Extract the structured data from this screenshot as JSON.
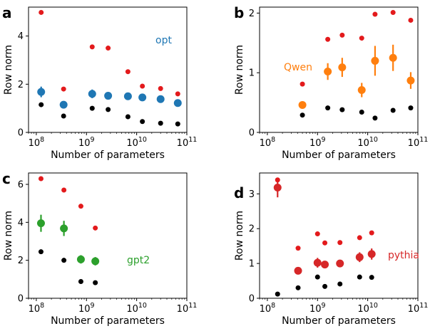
{
  "chart_data": [
    {
      "panel": "a",
      "type": "scatter",
      "label": "opt",
      "xlabel": "Number of parameters",
      "ylabel": "Row norm",
      "x_scale": "log",
      "xlim": [
        70000000,
        100000000000
      ],
      "ylim": [
        0,
        5.2
      ],
      "x_ticks": [
        100000000,
        1000000000,
        10000000000,
        100000000000
      ],
      "x_tick_labels": [
        {
          "base": "10",
          "exp": "8"
        },
        {
          "base": "10",
          "exp": "9"
        },
        {
          "base": "10",
          "exp": "10"
        },
        {
          "base": "10",
          "exp": "11"
        }
      ],
      "y_ticks": [
        0,
        2,
        4
      ],
      "y_tick_labels": [
        "0",
        "2",
        "4"
      ],
      "colors": {
        "main": "#1f77b4",
        "upper": "#e31a1c",
        "lower": "#000000"
      },
      "x": [
        125000000,
        350000000,
        1300000000,
        2700000000,
        6700000000,
        13000000000,
        30000000000,
        66000000000
      ],
      "main": [
        1.68,
        1.15,
        1.6,
        1.52,
        1.5,
        1.45,
        1.38,
        1.22
      ],
      "error": [
        0.22,
        0.12,
        0.18,
        0.15,
        0.12,
        0.12,
        0.1,
        0.12
      ],
      "upper": [
        4.98,
        1.8,
        3.55,
        3.5,
        2.52,
        1.92,
        1.82,
        1.6
      ],
      "lower": [
        1.15,
        0.68,
        1.0,
        0.95,
        0.65,
        0.45,
        0.38,
        0.35
      ]
    },
    {
      "panel": "b",
      "type": "scatter",
      "label": "Qwen",
      "xlabel": "Number of parameters",
      "ylabel": "Row norm",
      "x_scale": "log",
      "xlim": [
        70000000,
        100000000000
      ],
      "ylim": [
        0,
        2.1
      ],
      "x_ticks": [
        100000000,
        1000000000,
        10000000000,
        100000000000
      ],
      "x_tick_labels": [
        {
          "base": "10",
          "exp": "8"
        },
        {
          "base": "10",
          "exp": "9"
        },
        {
          "base": "10",
          "exp": "10"
        },
        {
          "base": "10",
          "exp": "11"
        }
      ],
      "y_ticks": [
        0,
        1,
        2
      ],
      "y_tick_labels": [
        "0",
        "1",
        "2"
      ],
      "colors": {
        "main": "#ff7f0e",
        "upper": "#e31a1c",
        "lower": "#000000"
      },
      "x": [
        500000000,
        1600000000,
        3100000000,
        7600000000,
        14000000000,
        32000000000,
        72000000000
      ],
      "main": [
        0.46,
        1.02,
        1.09,
        0.71,
        1.2,
        1.25,
        0.87
      ],
      "error": [
        0.06,
        0.14,
        0.16,
        0.12,
        0.25,
        0.22,
        0.14
      ],
      "upper": [
        0.81,
        1.56,
        1.63,
        1.58,
        1.98,
        2.01,
        1.88
      ],
      "lower": [
        0.29,
        0.41,
        0.38,
        0.34,
        0.24,
        0.37,
        0.41
      ]
    },
    {
      "panel": "c",
      "type": "scatter",
      "label": "gpt2",
      "xlabel": "Number of parameters",
      "ylabel": "Row norm",
      "x_scale": "log",
      "xlim": [
        70000000,
        100000000000
      ],
      "ylim": [
        0,
        6.6
      ],
      "x_ticks": [
        100000000,
        1000000000,
        10000000000,
        100000000000
      ],
      "x_tick_labels": [
        {
          "base": "10",
          "exp": "8"
        },
        {
          "base": "10",
          "exp": "9"
        },
        {
          "base": "10",
          "exp": "10"
        },
        {
          "base": "10",
          "exp": "11"
        }
      ],
      "y_ticks": [
        0,
        2,
        4,
        6
      ],
      "y_tick_labels": [
        "0",
        "2",
        "4",
        "6"
      ],
      "colors": {
        "main": "#2ca02c",
        "upper": "#e31a1c",
        "lower": "#000000"
      },
      "x": [
        124000000,
        355000000,
        774000000,
        1500000000
      ],
      "main": [
        3.95,
        3.68,
        2.05,
        1.95
      ],
      "error": [
        0.45,
        0.4,
        0.22,
        0.22
      ],
      "upper": [
        6.3,
        5.7,
        4.85,
        3.7
      ],
      "lower": [
        2.45,
        2.0,
        0.88,
        0.82
      ]
    },
    {
      "panel": "d",
      "type": "scatter",
      "label": "pythia",
      "xlabel": "Number of parameters",
      "ylabel": "Row norm",
      "x_scale": "log",
      "xlim": [
        70000000,
        100000000000
      ],
      "ylim": [
        0,
        3.6
      ],
      "x_ticks": [
        100000000,
        1000000000,
        10000000000,
        100000000000
      ],
      "x_tick_labels": [
        {
          "base": "10",
          "exp": "8"
        },
        {
          "base": "10",
          "exp": "9"
        },
        {
          "base": "10",
          "exp": "10"
        },
        {
          "base": "10",
          "exp": "11"
        }
      ],
      "y_ticks": [
        0,
        1,
        2,
        3
      ],
      "y_tick_labels": [
        "0",
        "1",
        "2",
        "3"
      ],
      "colors": {
        "main": "#d62728",
        "upper": "#e31a1c",
        "lower": "#000000"
      },
      "x": [
        160000000,
        410000000,
        1000000000,
        1400000000,
        2800000000,
        6900000000,
        12000000000
      ],
      "main": [
        3.18,
        0.79,
        1.02,
        0.97,
        1.0,
        1.18,
        1.27
      ],
      "error": [
        0.28,
        0.08,
        0.14,
        0.1,
        0.1,
        0.14,
        0.16
      ],
      "upper": [
        3.4,
        1.44,
        1.85,
        1.59,
        1.6,
        1.74,
        1.88
      ],
      "lower": [
        0.12,
        0.3,
        0.61,
        0.34,
        0.41,
        0.61,
        0.6
      ]
    }
  ]
}
